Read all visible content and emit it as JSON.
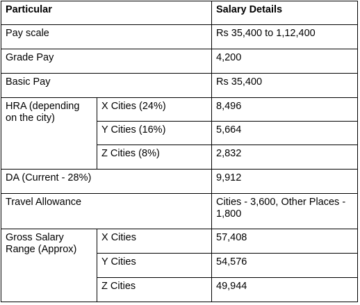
{
  "headers": {
    "particular": "Particular",
    "salary": "Salary Details"
  },
  "rows": {
    "pay_scale": {
      "label": "Pay scale",
      "value": "Rs 35,400 to 1,12,400"
    },
    "grade_pay": {
      "label": "Grade Pay",
      "value": "4,200"
    },
    "basic_pay": {
      "label": "Basic Pay",
      "value": "Rs 35,400"
    },
    "hra": {
      "label": "HRA (depending on the city)",
      "x_label": "X Cities (24%)",
      "x_value": "8,496",
      "y_label": "Y Cities (16%)",
      "y_value": "5,664",
      "z_label": "Z Cities (8%)",
      "z_value": "2,832"
    },
    "da": {
      "label": "DA (Current - 28%)",
      "value": "9,912"
    },
    "travel": {
      "label": "Travel Allowance",
      "value": "Cities - 3,600, Other Places - 1,800"
    },
    "gross": {
      "label": "Gross Salary Range (Approx)",
      "x_label": "X Cities",
      "x_value": "57,408",
      "y_label": "Y Cities",
      "y_value": "54,576",
      "z_label": "Z Cities",
      "z_value": "49,944"
    }
  }
}
